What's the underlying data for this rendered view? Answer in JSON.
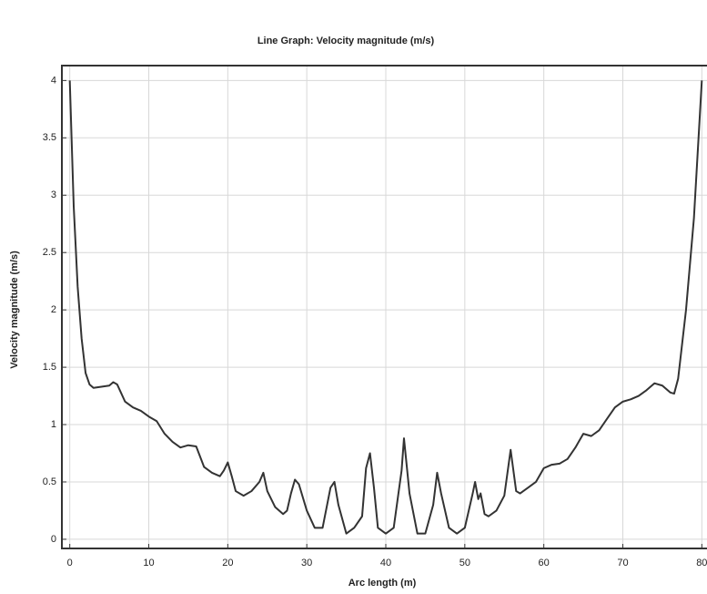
{
  "chart_data": {
    "type": "line",
    "title": "Line Graph: Velocity magnitude (m/s)",
    "x_label": "Arc length (m)",
    "y_label": "Velocity magnitude (m/s)",
    "xlim": [
      -1,
      81
    ],
    "ylim": [
      -0.08,
      4.13
    ],
    "xticks": [
      0,
      10,
      20,
      30,
      40,
      50,
      60,
      70,
      80
    ],
    "yticks": [
      0,
      0.5,
      1,
      1.5,
      2,
      2.5,
      3,
      3.5,
      4
    ],
    "grid": true,
    "x": [
      0,
      0.5,
      1,
      1.5,
      2,
      2.5,
      3,
      4,
      5,
      5.5,
      6,
      7,
      8,
      9,
      10,
      11,
      12,
      13,
      14,
      15,
      16,
      17,
      18,
      19,
      19.5,
      20,
      20.5,
      21,
      22,
      23,
      24,
      24.5,
      25,
      26,
      27,
      27.5,
      28,
      28.5,
      29,
      30,
      31,
      32,
      33,
      33.5,
      34,
      35,
      36,
      37,
      37.5,
      38,
      38.5,
      39,
      40,
      41,
      42,
      42.3,
      43,
      44,
      45,
      46,
      46.5,
      47,
      48,
      49,
      50,
      51,
      51.3,
      51.7,
      52,
      52.5,
      53,
      54,
      55,
      55.8,
      56.5,
      57,
      58,
      59,
      60,
      61,
      62,
      63,
      64,
      65,
      66,
      67,
      68,
      69,
      70,
      71,
      72,
      73,
      74,
      75,
      76,
      76.5,
      77,
      78,
      79,
      80
    ],
    "series": [
      {
        "name": "Velocity magnitude",
        "color": "#333333",
        "values": [
          4.0,
          2.9,
          2.2,
          1.75,
          1.45,
          1.35,
          1.32,
          1.33,
          1.34,
          1.37,
          1.35,
          1.2,
          1.15,
          1.12,
          1.07,
          1.03,
          0.92,
          0.85,
          0.8,
          0.82,
          0.81,
          0.63,
          0.58,
          0.55,
          0.6,
          0.67,
          0.55,
          0.42,
          0.38,
          0.42,
          0.5,
          0.58,
          0.42,
          0.28,
          0.22,
          0.25,
          0.4,
          0.52,
          0.48,
          0.25,
          0.1,
          0.1,
          0.45,
          0.5,
          0.3,
          0.05,
          0.1,
          0.2,
          0.62,
          0.75,
          0.45,
          0.1,
          0.05,
          0.1,
          0.6,
          0.88,
          0.4,
          0.05,
          0.05,
          0.3,
          0.58,
          0.4,
          0.1,
          0.05,
          0.1,
          0.4,
          0.5,
          0.35,
          0.4,
          0.22,
          0.2,
          0.25,
          0.38,
          0.78,
          0.42,
          0.4,
          0.45,
          0.5,
          0.62,
          0.65,
          0.66,
          0.7,
          0.8,
          0.92,
          0.9,
          0.95,
          1.05,
          1.15,
          1.2,
          1.22,
          1.25,
          1.3,
          1.36,
          1.34,
          1.28,
          1.27,
          1.4,
          2.0,
          2.8,
          4.0
        ]
      }
    ]
  }
}
